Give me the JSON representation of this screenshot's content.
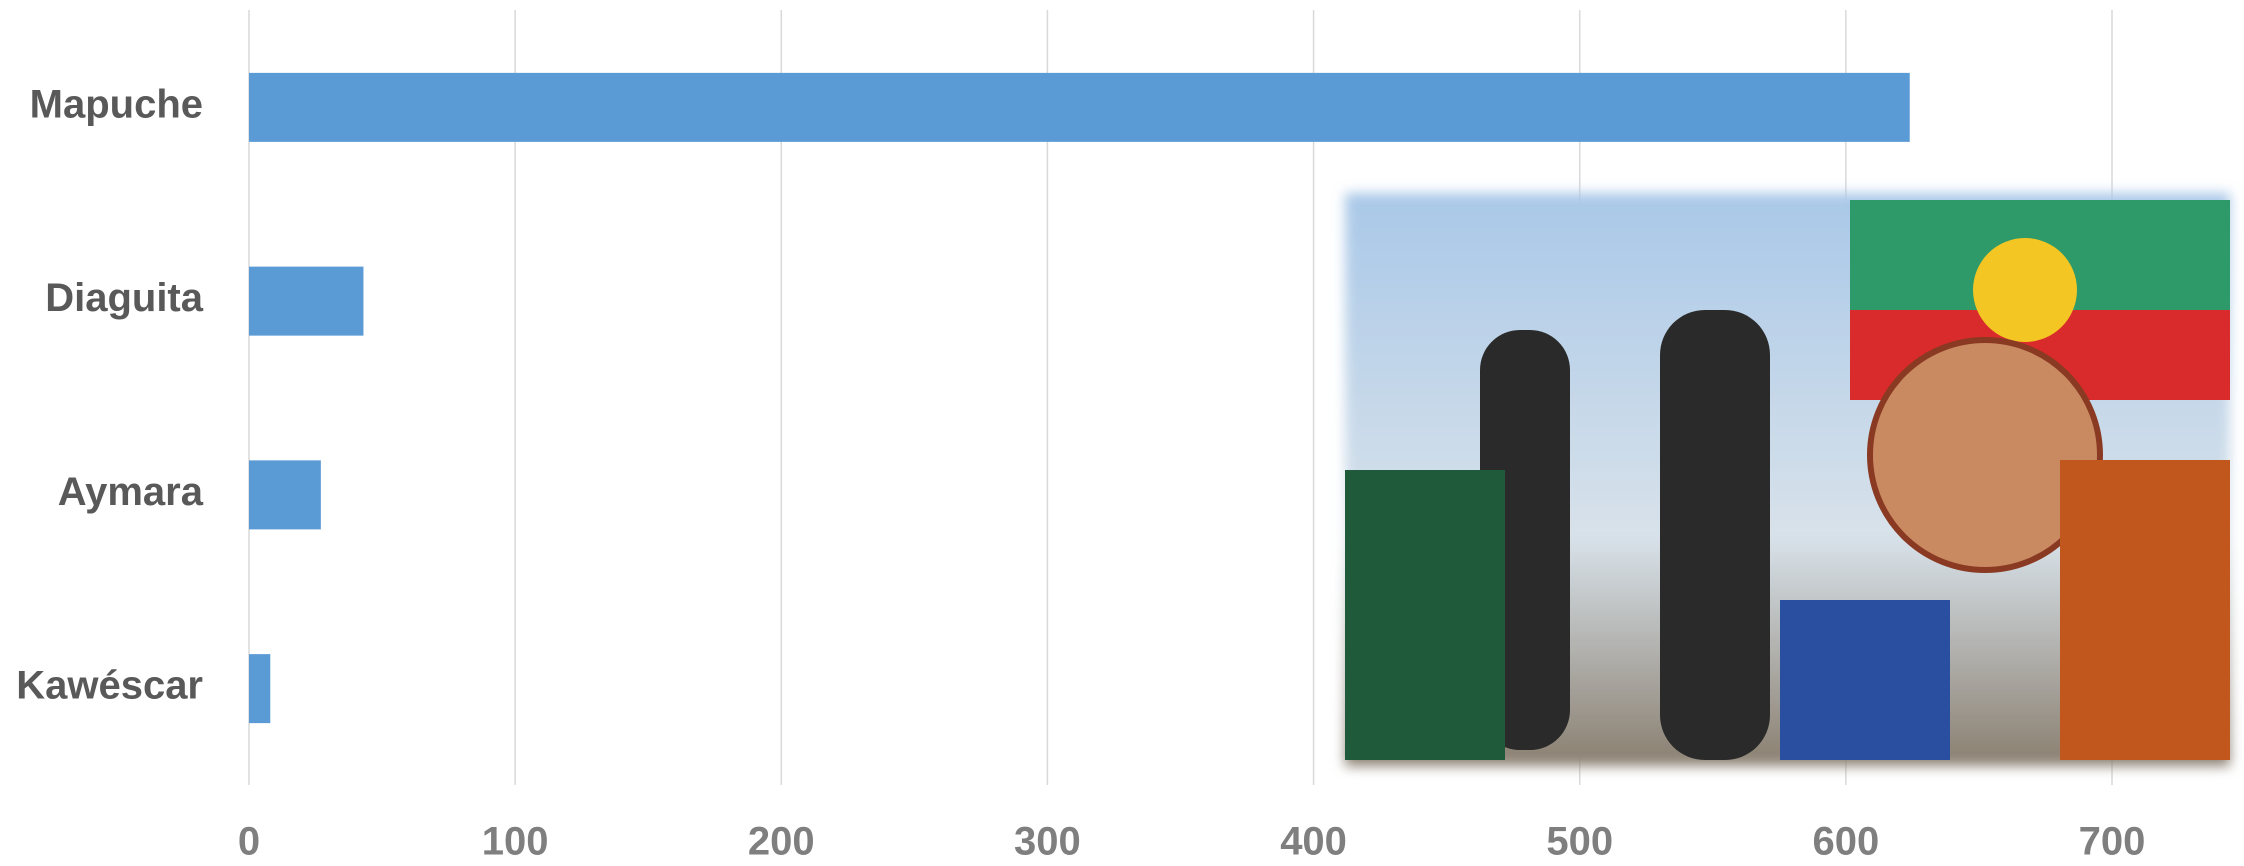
{
  "chart_data": {
    "type": "bar",
    "orientation": "horizontal",
    "categories": [
      "Mapuche",
      "Diaguita",
      "Aymara",
      "Kawéscar"
    ],
    "values": [
      624,
      43,
      27,
      8
    ],
    "color": "#5b9bd5",
    "xlim": [
      0,
      700
    ],
    "xticks": [
      0,
      100,
      200,
      300,
      400,
      500,
      600,
      700
    ],
    "grid": true
  }
}
